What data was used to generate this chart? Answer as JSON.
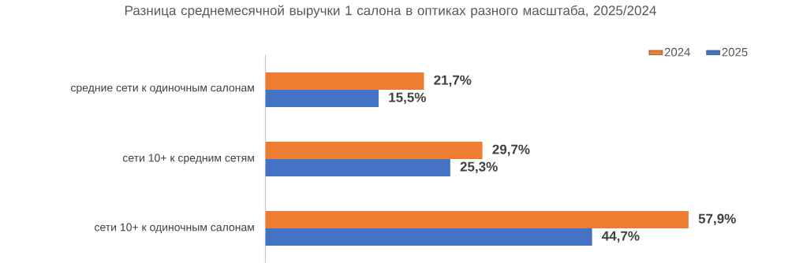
{
  "chart_data": {
    "type": "bar",
    "orientation": "horizontal",
    "title": "Разница среднемесячной выручки 1 салона в оптиках разного масштаба, 2025/2024",
    "categories": [
      "средние сети к одиночным салонам",
      "сети 10+ к средним сетям",
      "сети 10+ к одиночным салонам"
    ],
    "series": [
      {
        "name": "2024",
        "color": "#ed7d31",
        "values": [
          21.7,
          29.7,
          57.9
        ],
        "value_labels": [
          "21,7%",
          "29,7%",
          "57,9%"
        ]
      },
      {
        "name": "2025",
        "color": "#4472c4",
        "values": [
          15.5,
          25.3,
          44.7
        ],
        "value_labels": [
          "15,5%",
          "25,3%",
          "44,7%"
        ]
      }
    ],
    "legend": "top right"
  }
}
